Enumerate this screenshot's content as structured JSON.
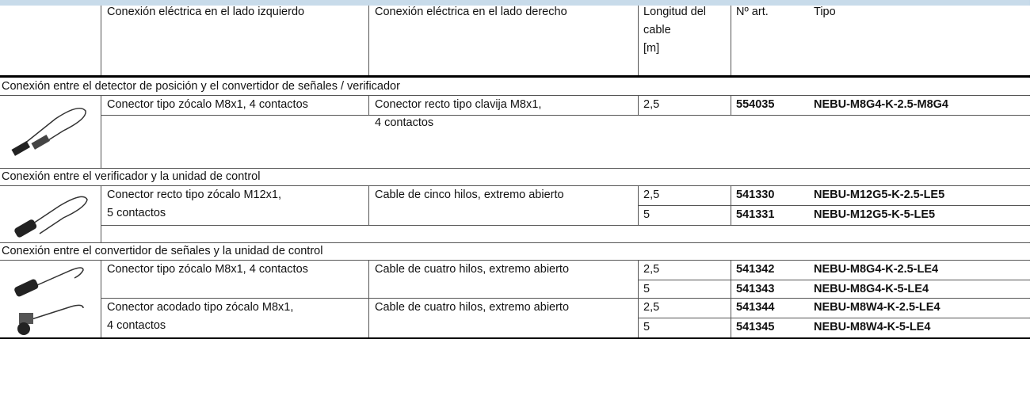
{
  "header": {
    "columns": [
      [
        "Conexión eléctrica en el lado izquierdo"
      ],
      [
        "Conexión eléctrica en el lado derecho"
      ],
      [
        "Longitud del",
        "cable",
        "[m]"
      ],
      [
        "Nº art."
      ],
      [
        "Tipo"
      ]
    ]
  },
  "sections": [
    {
      "title": "Conexión entre el detector de posición y el convertidor de señales / verificador",
      "groups": [
        {
          "left": [
            "Conector tipo zócalo M8x1, 4 contactos"
          ],
          "right": [
            "Conector recto tipo clavija M8x1,",
            "4 contactos"
          ],
          "items": [
            {
              "length": "2,5",
              "article": "554035",
              "type": "NEBU-M8G4-K-2.5-M8G4"
            }
          ]
        }
      ]
    },
    {
      "title": "Conexión entre el verificador y la unidad de control",
      "groups": [
        {
          "left": [
            "Conector recto tipo zócalo M12x1,",
            "5 contactos"
          ],
          "right": [
            "Cable de cinco hilos, extremo abierto"
          ],
          "items": [
            {
              "length": "2,5",
              "article": "541330",
              "type": "NEBU-M12G5-K-2.5-LE5"
            },
            {
              "length": "5",
              "article": "541331",
              "type": "NEBU-M12G5-K-5-LE5"
            }
          ]
        }
      ]
    },
    {
      "title": "Conexión entre el convertidor de señales y la unidad de control",
      "groups": [
        {
          "left": [
            "Conector tipo zócalo M8x1, 4 contactos"
          ],
          "right": [
            "Cable de cuatro hilos, extremo abierto"
          ],
          "items": [
            {
              "length": "2,5",
              "article": "541342",
              "type": "NEBU-M8G4-K-2.5-LE4"
            },
            {
              "length": "5",
              "article": "541343",
              "type": "NEBU-M8G4-K-5-LE4"
            }
          ]
        },
        {
          "left": [
            "Conector acodado tipo zócalo M8x1,",
            "4 contactos"
          ],
          "right": [
            "Cable de cuatro hilos, extremo abierto"
          ],
          "items": [
            {
              "length": "2,5",
              "article": "541344",
              "type": "NEBU-M8W4-K-2.5-LE4"
            },
            {
              "length": "5",
              "article": "541345",
              "type": "NEBU-M8W4-K-5-LE4"
            }
          ]
        }
      ]
    }
  ]
}
